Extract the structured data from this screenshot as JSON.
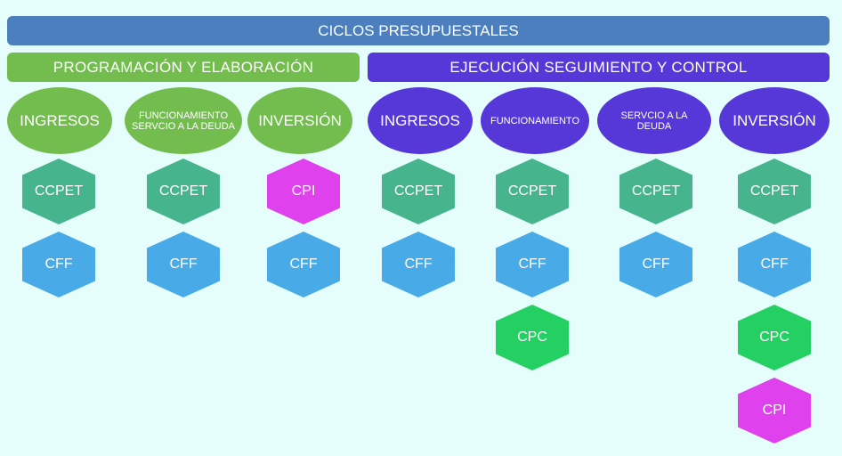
{
  "title": "CICLOS PRESUPUESTALES",
  "sections": {
    "programacion": "PROGRAMACIÓN Y ELABORACIÓN",
    "ejecucion": "EJECUCIÓN SEGUIMIENTO Y CONTROL"
  },
  "categories": [
    {
      "label": "INGRESOS",
      "items": [
        "CCPET",
        "CFF"
      ]
    },
    {
      "label": "FUNCIONAMIENTO SERVCIO A LA DEUDA",
      "items": [
        "CCPET",
        "CFF"
      ]
    },
    {
      "label": "INVERSIÓN",
      "items": [
        "CPI",
        "CFF"
      ]
    },
    {
      "label": "INGRESOS",
      "items": [
        "CCPET",
        "CFF"
      ]
    },
    {
      "label": "FUNCIONAMIENTO",
      "items": [
        "CCPET",
        "CFF",
        "CPC"
      ]
    },
    {
      "label": "SERVCIO A LA DEUDA",
      "items": [
        "CCPET",
        "CFF"
      ]
    },
    {
      "label": "INVERSIÓN",
      "items": [
        "CCPET",
        "CFF",
        "CPC",
        "CPI"
      ]
    }
  ],
  "colors": {
    "background": "#E5FEFC",
    "title_bar": "#4C7FBD",
    "programacion": "#72BD4E",
    "ejecucion": "#5638D9",
    "CCPET": "#46B48C",
    "CFF": "#48AAE6",
    "CPI": "#DF41EC",
    "CPC": "#24D062"
  }
}
